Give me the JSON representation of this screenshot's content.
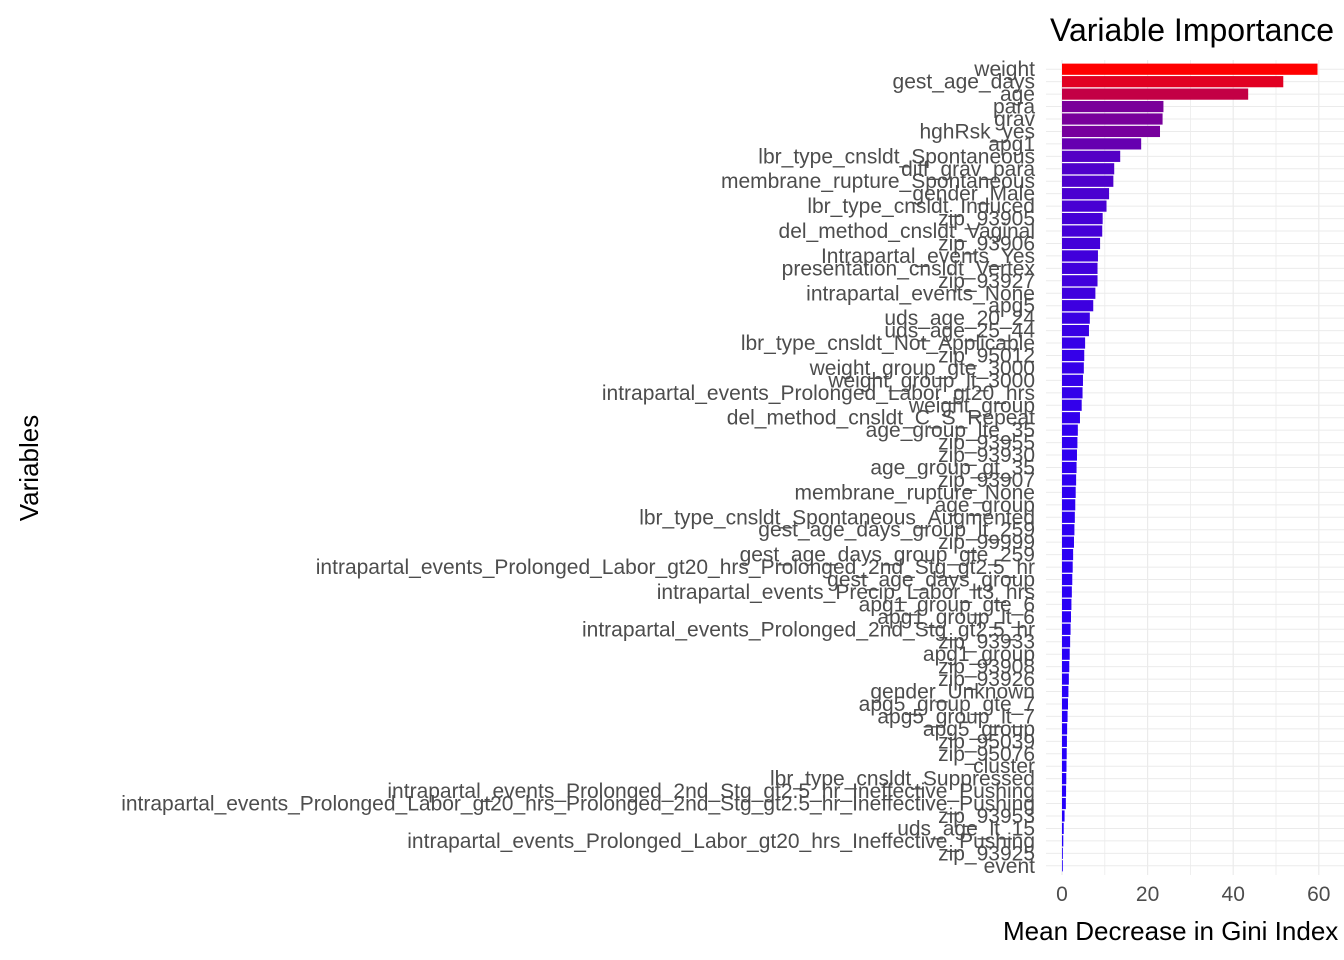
{
  "chart_data": {
    "type": "bar",
    "orientation": "horizontal",
    "title": "Variable Importance",
    "xlabel": "Mean Decrease in Gini Index",
    "ylabel": "Variables",
    "xlim": [
      0,
      62
    ],
    "xticks": [
      0,
      20,
      40,
      60
    ],
    "grid": true,
    "legend": "none",
    "color_low": "#2200ff",
    "color_high": "#ff0000",
    "categories": [
      "weight",
      "gest_age_days",
      "age",
      "para",
      "grav",
      "hghRsk_yes",
      "apg1",
      "lbr_type_cnsldt_Spontaneous",
      "diff_grav_para",
      "membrane_rupture_Spontaneous",
      "gender_Male",
      "lbr_type_cnsldt_Induced",
      "zip_93905",
      "del_method_cnsldt_Vaginal",
      "zip_93906",
      "Intrapartal_events_Yes",
      "presentation_cnsldt_Vertex",
      "zip_93927",
      "intrapartal_events_None",
      "apg5",
      "uds_age_20_24",
      "uds_age_25_44",
      "lbr_type_cnsldt_Not_Applicable",
      "zip_95012",
      "weight_group_gte_3000",
      "weight_group_lt_3000",
      "intrapartal_events_Prolonged_Labor_gt20_hrs",
      "weight_group",
      "del_method_cnsldt_C_S_Repeat",
      "age_group_lte_35",
      "zip_93955",
      "zip_93930",
      "age_group_gt_35",
      "zip_93907",
      "membrane_rupture_None",
      "age_group",
      "lbr_type_cnsldt_Spontaneous_Augmented",
      "gest_age_days_group_lt_259",
      "zip_99999",
      "gest_age_days_group_gte_259",
      "intrapartal_events_Prolonged_Labor_gt20_hrs_Prolonged_2nd_Stg_gt2.5_hr",
      "gest_age_days_group",
      "intrapartal_events_Precip_Labor_lt3_hrs",
      "apg1_group_gte_6",
      "apg1_group_lt_6",
      "intrapartal_events_Prolonged_2nd_Stg_gt2.5_hr",
      "zip_93933",
      "apg1_group",
      "zip_93908",
      "zip_93926",
      "gender_Unknown",
      "apg5_group_gte_7",
      "apg5_group_lt_7",
      "apg5_group",
      "zip_95039",
      "zip_95076",
      "cluster",
      "lbr_type_cnsldt_Suppressed",
      "intrapartal_events_Prolonged_2nd_Stg_gt2.5_hr_Ineffective_Pushing",
      "intrapartal_events_Prolonged_Labor_gt20_hrs_Prolonged_2nd_Stg_gt2.5_hr_Ineffective_Pushing",
      "zip_93953",
      "uds_age_lt_15",
      "intrapartal_events_Prolonged_Labor_gt20_hrs_Ineffective_Pushing",
      "zip_93925",
      "event"
    ],
    "values": [
      59.7,
      51.7,
      43.5,
      23.7,
      23.5,
      22.9,
      18.5,
      13.6,
      12.2,
      12.0,
      11.0,
      10.4,
      9.5,
      9.4,
      8.9,
      8.4,
      8.3,
      8.3,
      7.8,
      7.3,
      6.5,
      6.3,
      5.4,
      5.2,
      5.1,
      4.9,
      4.8,
      4.6,
      4.2,
      3.7,
      3.6,
      3.5,
      3.4,
      3.3,
      3.2,
      3.1,
      3.0,
      2.9,
      2.8,
      2.6,
      2.5,
      2.4,
      2.3,
      2.2,
      2.1,
      2.0,
      1.9,
      1.8,
      1.7,
      1.6,
      1.5,
      1.4,
      1.3,
      1.2,
      1.15,
      1.1,
      1.05,
      1.0,
      0.95,
      0.9,
      0.6,
      0.4,
      0.3,
      0.2,
      0.1
    ]
  }
}
